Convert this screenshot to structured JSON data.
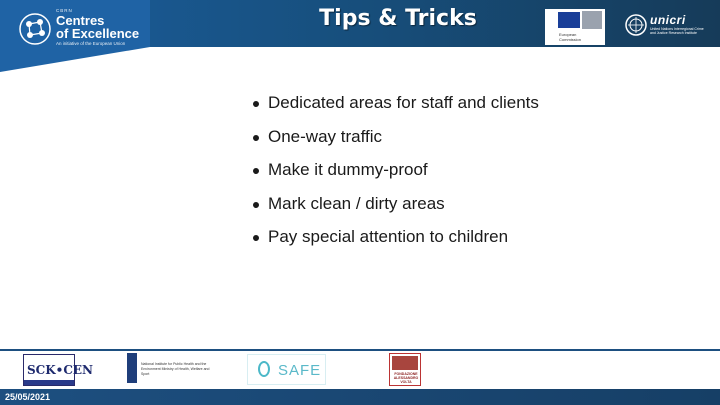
{
  "header": {
    "title": "Tips & Tricks",
    "coe": {
      "small": "CBRN",
      "line1": "Centres",
      "line2": "of Excellence",
      "sub": "An initiative of the European Union"
    },
    "eu": {
      "label_1": "European",
      "label_2": "Commission"
    },
    "unicri": {
      "name": "unicri",
      "sub": "United Nations Interregional Crime and Justice Research Institute"
    }
  },
  "bullets": [
    "Dedicated areas for staff and clients",
    "One-way traffic",
    "Make it dummy-proof",
    "Mark clean / dirty areas",
    "Pay special attention to children"
  ],
  "footer": {
    "date": "25/05/2021",
    "logos": {
      "sck": "SCK•CEN",
      "rivm": "National Institute for Public Health and the Environment Ministry of Health, Welfare and Sport",
      "safe": "SAFE",
      "volta": "FONDAZIONE ALESSANDRO VOLTA"
    }
  },
  "colors": {
    "header": "#1b5d9c",
    "footer": "#1d4f80",
    "text": "#1a1a1a"
  }
}
